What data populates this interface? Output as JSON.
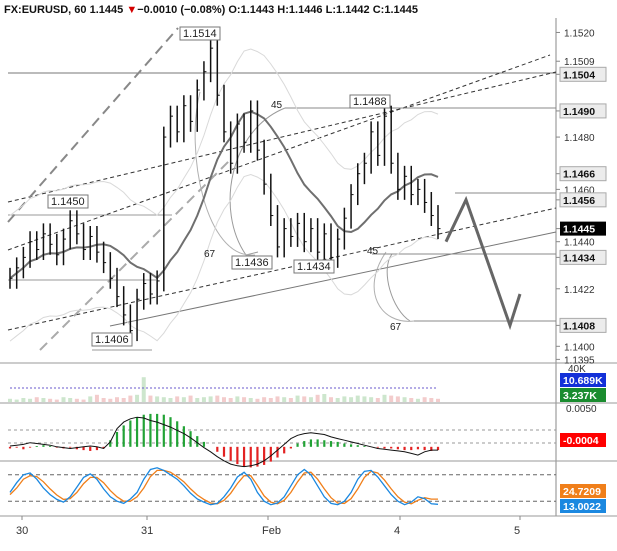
{
  "header": {
    "symbol": "FX:EURUSD, 60",
    "last": "1.1445",
    "change": "−0.0010 (−0.08%)",
    "open_label": "O:",
    "open": "1.1443",
    "high_label": "H:",
    "high": "1.1446",
    "low_label": "L:",
    "low": "1.1442",
    "close_label": "C:",
    "close": "1.1445",
    "down_arrow": "▼"
  },
  "colors": {
    "up": "#1a1a1a",
    "down": "#1a1a1a",
    "macd_up": "#22a336",
    "macd_down": "#e32222",
    "stoch_k": "#1b88e0",
    "stoch_d": "#f07f1a",
    "last_price_bg": "#000000",
    "neg_bg": "#ff0000",
    "pos_bg": "#1a8c2f",
    "vol_bg": "#1330d8",
    "stoch_d_bg": "#f07f1a",
    "stoch_k_bg": "#1b88e0"
  },
  "chart_data": {
    "type": "line",
    "main": {
      "y_ticks": [
        "1.1520",
        "1.1509",
        "1.1504",
        "1.1490",
        "1.1480",
        "1.1466",
        "1.1460",
        "1.1456",
        "1.1445",
        "1.1440",
        "1.1434",
        "1.1422",
        "1.1408",
        "1.1400",
        "1.1395"
      ],
      "ylim": [
        1.1394,
        1.1524
      ],
      "price_path": [
        1.1426,
        1.143,
        1.1434,
        1.144,
        1.1437,
        1.1443,
        1.1439,
        1.1435,
        1.1441,
        1.1448,
        1.1443,
        1.1437,
        1.1442,
        1.1436,
        1.1432,
        1.1426,
        1.1419,
        1.1412,
        1.1406,
        1.1418,
        1.1424,
        1.142,
        1.1425,
        1.148,
        1.1488,
        1.1482,
        1.1492,
        1.1486,
        1.1498,
        1.1505,
        1.1514,
        1.1496,
        1.1482,
        1.147,
        1.1485,
        1.1478,
        1.149,
        1.1475,
        1.1462,
        1.145,
        1.1438,
        1.1445,
        1.1442,
        1.1447,
        1.144,
        1.1445,
        1.1436,
        1.1443,
        1.1434,
        1.1441,
        1.1449,
        1.1458,
        1.1466,
        1.147,
        1.1482,
        1.1473,
        1.1488,
        1.147,
        1.146,
        1.1465,
        1.1458,
        1.146,
        1.1455,
        1.145,
        1.1445
      ],
      "hi_lo_labels": [
        {
          "text": "1.1514",
          "value": 1.1514
        },
        {
          "text": "1.1488",
          "value": 1.1488
        },
        {
          "text": "1.1450",
          "value": 1.145
        },
        {
          "text": "1.1436",
          "value": 1.1436
        },
        {
          "text": "1.1434",
          "value": 1.1434
        },
        {
          "text": "1.1406",
          "value": 1.1406
        }
      ],
      "annotations": [
        "45",
        "67",
        "45",
        "67"
      ],
      "projection": [
        1.144,
        1.1456,
        1.1408,
        1.142
      ],
      "price_tags": [
        {
          "text": "1.1504",
          "value": 1.1504,
          "kind": "level"
        },
        {
          "text": "1.1490",
          "value": 1.149,
          "kind": "level"
        },
        {
          "text": "1.1466",
          "value": 1.1466,
          "kind": "level"
        },
        {
          "text": "1.1456",
          "value": 1.1456,
          "kind": "level"
        },
        {
          "text": "1.1445",
          "value": 1.1445,
          "kind": "last"
        },
        {
          "text": "1.1434",
          "value": 1.1434,
          "kind": "level"
        },
        {
          "text": "1.1408",
          "value": 1.1408,
          "kind": "level"
        }
      ]
    },
    "volume": {
      "labels": [
        "40K",
        "10.689K",
        "3.237K"
      ],
      "values": [
        4,
        3,
        5,
        4,
        6,
        5,
        4,
        3,
        6,
        5,
        4,
        3,
        7,
        9,
        5,
        4,
        6,
        5,
        8,
        9,
        31,
        8,
        7,
        6,
        5,
        7,
        6,
        8,
        5,
        6,
        7,
        8,
        6,
        5,
        7,
        6,
        5,
        4,
        6,
        5,
        7,
        6,
        5,
        8,
        7,
        6,
        9,
        10,
        6,
        5,
        7,
        6,
        8,
        7,
        6,
        5,
        9,
        8,
        7,
        6,
        5,
        4,
        6,
        5,
        4
      ]
    },
    "macd": {
      "labels": [
        "0.0050",
        "-0.0004"
      ],
      "ylim": [
        -0.0016,
        0.0052
      ],
      "hist": [
        -2,
        -1,
        -3,
        -1,
        1,
        2,
        1,
        -1,
        -2,
        -1,
        -3,
        -4,
        -5,
        -4,
        -2,
        8,
        18,
        26,
        32,
        36,
        39,
        40,
        40,
        39,
        36,
        31,
        25,
        19,
        13,
        6,
        0,
        -6,
        -12,
        -17,
        -21,
        -24,
        -25,
        -24,
        -22,
        -18,
        -13,
        -8,
        -2,
        4,
        7,
        9,
        9,
        8,
        7,
        6,
        4,
        3,
        2,
        1,
        0,
        -1,
        -2,
        -2,
        -3,
        -4,
        -4,
        -3,
        -4,
        -5,
        -4
      ],
      "line": [
        1,
        2,
        3,
        5,
        4,
        3,
        2,
        0,
        -1,
        -2,
        -1,
        0,
        1,
        0,
        -2,
        6,
        22,
        30,
        34,
        36,
        35,
        32,
        30,
        27,
        24,
        20,
        16,
        11,
        5,
        -1,
        -6,
        -12,
        -17,
        -21,
        -23,
        -24,
        -23,
        -21,
        -17,
        -11,
        -4,
        3,
        10,
        14,
        16,
        17,
        16,
        15,
        12,
        10,
        8,
        6,
        4,
        2,
        0,
        -2,
        -3,
        -4,
        -5,
        -6,
        -8,
        -10,
        -6,
        -4,
        -4
      ]
    },
    "stoch": {
      "labels": [
        "24.7209",
        "13.0022"
      ],
      "ylim": [
        0,
        100
      ],
      "k": [
        40,
        62,
        80,
        84,
        70,
        50,
        35,
        24,
        18,
        30,
        52,
        74,
        82,
        70,
        48,
        30,
        20,
        15,
        25,
        40,
        70,
        92,
        96,
        90,
        80,
        70,
        55,
        38,
        25,
        18,
        12,
        15,
        30,
        50,
        75,
        86,
        70,
        40,
        20,
        12,
        16,
        30,
        55,
        80,
        92,
        80,
        55,
        30,
        15,
        12,
        20,
        40,
        70,
        88,
        90,
        75,
        55,
        35,
        20,
        12,
        18,
        30,
        26,
        14,
        13
      ],
      "d": [
        35,
        50,
        70,
        78,
        76,
        64,
        48,
        34,
        24,
        26,
        40,
        60,
        74,
        74,
        62,
        44,
        30,
        20,
        20,
        30,
        50,
        76,
        90,
        90,
        86,
        76,
        64,
        48,
        34,
        24,
        16,
        14,
        22,
        38,
        60,
        78,
        78,
        56,
        32,
        18,
        14,
        22,
        40,
        64,
        84,
        86,
        70,
        48,
        28,
        16,
        15,
        26,
        48,
        74,
        88,
        84,
        68,
        48,
        30,
        18,
        14,
        22,
        28,
        24.7,
        24.7
      ]
    },
    "x_ticks": [
      "30",
      "31",
      "Feb",
      "4",
      "5"
    ]
  }
}
